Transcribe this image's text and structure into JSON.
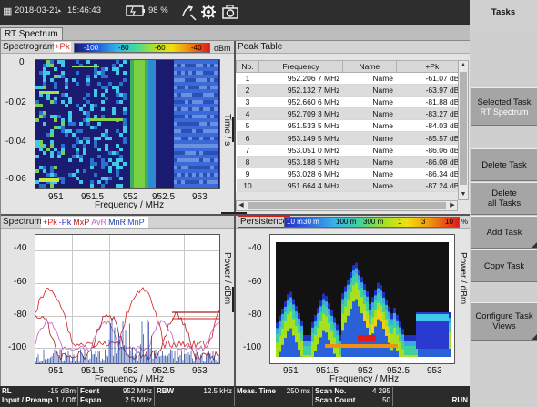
{
  "topbar": {
    "date": "2018-03-21",
    "time": "15:46:43",
    "battery": "98 %",
    "tasks_title": "Tasks"
  },
  "tab": {
    "label": "RT Spectrum"
  },
  "spectrogram": {
    "title": "Spectrogram",
    "trace": "+Pk",
    "cbar_labels": [
      "-100",
      "-80",
      "-60",
      "-40",
      "dBm"
    ],
    "y_ticks": [
      "0",
      "-0.02",
      "-0.04",
      "-0.06"
    ],
    "x_ticks": [
      "951",
      "951.5",
      "952",
      "952.5",
      "953"
    ],
    "xlabel": "Frequency / MHz",
    "ylabel": "Time / s"
  },
  "peak_table": {
    "title": "Peak Table",
    "columns": [
      "No.",
      "Frequency",
      "Name",
      "+Pk"
    ],
    "rows": [
      [
        "1",
        "952.206 7 MHz",
        "Name",
        "-61.07 dBm"
      ],
      [
        "2",
        "952.132 7 MHz",
        "Name",
        "-63.97 dBm"
      ],
      [
        "3",
        "952.660 6 MHz",
        "Name",
        "-81.88 dBm"
      ],
      [
        "4",
        "952.709 3 MHz",
        "Name",
        "-83.27 dBm"
      ],
      [
        "5",
        "951.533 5 MHz",
        "Name",
        "-84.03 dBm"
      ],
      [
        "6",
        "953.149 5 MHz",
        "Name",
        "-85.57 dBm"
      ],
      [
        "7",
        "953.051 0 MHz",
        "Name",
        "-86.06 dBm"
      ],
      [
        "8",
        "953.188 5 MHz",
        "Name",
        "-86.08 dBm"
      ],
      [
        "9",
        "953.028 6 MHz",
        "Name",
        "-86.34 dBm"
      ],
      [
        "10",
        "951.664 4 MHz",
        "Name",
        "-87.24 dBm"
      ]
    ]
  },
  "spectrum": {
    "title": "Spectrum",
    "traces": [
      {
        "label": "+Pk",
        "color": "#d81e1e"
      },
      {
        "label": "-Pk",
        "color": "#2a2ad0"
      },
      {
        "label": "MxP",
        "color": "#b01a1a"
      },
      {
        "label": "AvR",
        "color": "#c060c0"
      },
      {
        "label": "MnR",
        "color": "#1a3a9a"
      },
      {
        "label": "MnP",
        "color": "#2a4ad0"
      }
    ],
    "y_ticks": [
      "-40",
      "-60",
      "-80",
      "-100"
    ],
    "x_ticks": [
      "951",
      "951.5",
      "952",
      "952.5",
      "953"
    ],
    "xlabel": "Frequency / MHz",
    "ylabel": "Power / dBm"
  },
  "persistence": {
    "title": "Persistence",
    "cbar_labels": [
      "10 m",
      "30 m",
      "100 m",
      "300 m",
      "1",
      "3",
      "10",
      "%"
    ],
    "y_ticks": [
      "-40",
      "-60",
      "-80",
      "-100"
    ],
    "x_ticks": [
      "951",
      "951.5",
      "952",
      "952.5",
      "953"
    ],
    "xlabel": "Frequency / MHz",
    "ylabel": "Power / dBm"
  },
  "tasks": {
    "selected_label": "Selected Task",
    "selected_value": "RT Spectrum",
    "delete_task": "Delete Task",
    "delete_all_1": "Delete",
    "delete_all_2": "all Tasks",
    "add_task": "Add Task",
    "copy_task": "Copy Task",
    "configure_1": "Configure Task",
    "configure_2": "Views"
  },
  "status": {
    "rl_label": "RL",
    "rl_value": "-15 dBm",
    "input_label": "Input / Preamp",
    "input_value": "1 / Off",
    "fcent_label": "Fcent",
    "fcent_value": "952 MHz",
    "fspan_label": "Fspan",
    "fspan_value": "2.5 MHz",
    "rbw_label": "RBW",
    "rbw_value": "12.5 kHz",
    "meas_label": "Meas. Time",
    "meas_value": "250 ms",
    "scanno_label": "Scan No.",
    "scanno_value": "4 295",
    "scancount_label": "Scan Count",
    "scancount_value": "50",
    "run": "RUN"
  }
}
